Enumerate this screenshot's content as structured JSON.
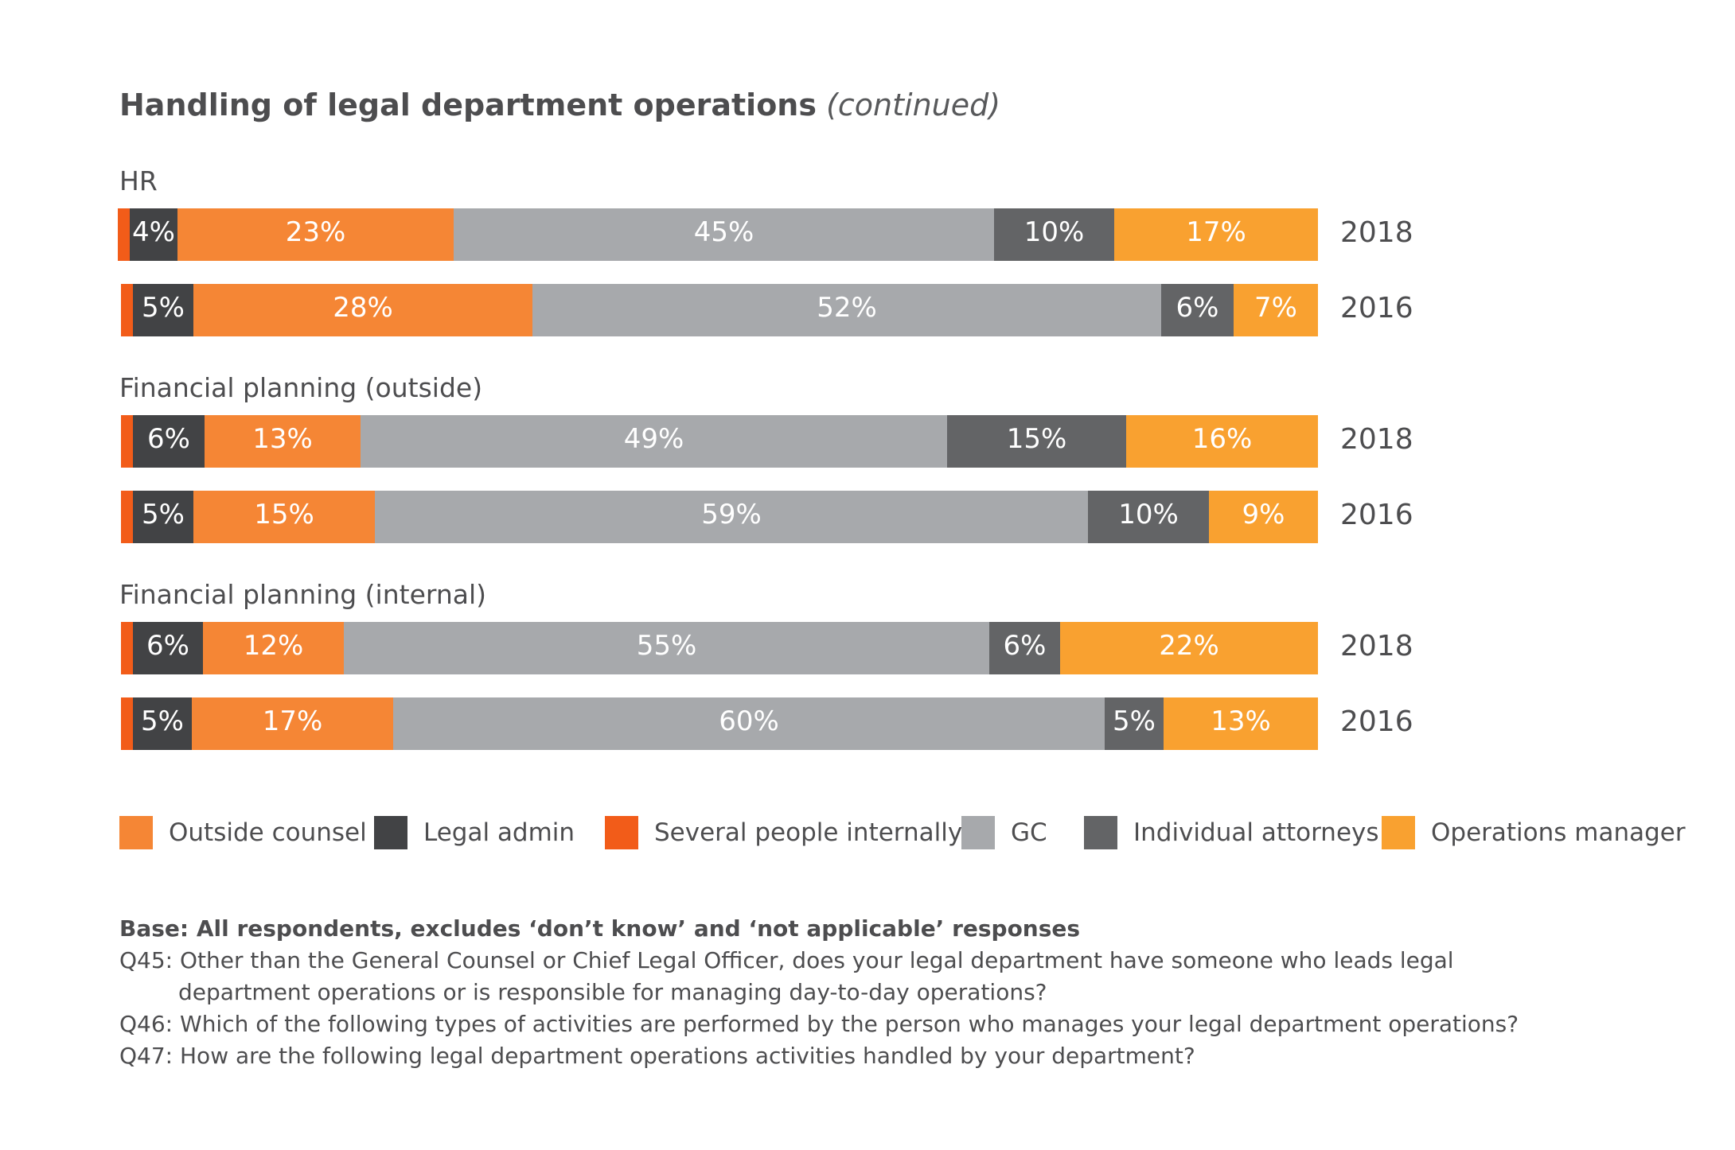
{
  "chart_data": {
    "type": "stacked-bar-horizontal",
    "title": "Handling of legal department operations",
    "subtitle": "(continued)",
    "series_order": [
      "Several people internally",
      "Legal admin",
      "Outside counsel",
      "GC",
      "Individual attorneys",
      "Operations manager"
    ],
    "colors": {
      "Several people internally": "#f25c19",
      "Legal admin": "#424345",
      "Outside counsel": "#f58635",
      "GC": "#a7a9ac",
      "Individual attorneys": "#636466",
      "Operations manager": "#f9a130"
    },
    "groups": [
      {
        "name": "HR",
        "rows": [
          {
            "year": "2018",
            "values": [
              1,
              4,
              23,
              45,
              10,
              17
            ],
            "labels": [
              "",
              "4%",
              "23%",
              "45%",
              "10%",
              "17%"
            ]
          },
          {
            "year": "2016",
            "values": [
              1,
              5,
              28,
              52,
              6,
              7
            ],
            "labels": [
              "",
              "5%",
              "28%",
              "52%",
              "6%",
              "7%"
            ]
          }
        ]
      },
      {
        "name": "Financial planning (outside)",
        "rows": [
          {
            "year": "2018",
            "values": [
              1,
              6,
              13,
              49,
              15,
              16
            ],
            "labels": [
              "",
              "6%",
              "13%",
              "49%",
              "15%",
              "16%"
            ]
          },
          {
            "year": "2016",
            "values": [
              1,
              5,
              15,
              59,
              10,
              9
            ],
            "labels": [
              "",
              "5%",
              "15%",
              "59%",
              "10%",
              "9%"
            ]
          }
        ]
      },
      {
        "name": "Financial planning (internal)",
        "rows": [
          {
            "year": "2018",
            "values": [
              1,
              6,
              12,
              55,
              6,
              22
            ],
            "labels": [
              "",
              "6%",
              "12%",
              "55%",
              "6%",
              "22%"
            ]
          },
          {
            "year": "2016",
            "values": [
              1,
              5,
              17,
              60,
              5,
              13
            ],
            "labels": [
              "",
              "5%",
              "17%",
              "60%",
              "5%",
              "13%"
            ]
          }
        ]
      }
    ],
    "legend": [
      {
        "label": "Outside counsel",
        "color": "#f58635"
      },
      {
        "label": "Legal admin",
        "color": "#424345"
      },
      {
        "label": "Several people internally",
        "color": "#f25c19"
      },
      {
        "label": "GC",
        "color": "#a7a9ac"
      },
      {
        "label": "Individual attorneys",
        "color": "#636466"
      },
      {
        "label": "Operations manager",
        "color": "#f9a130"
      }
    ]
  },
  "footnotes": {
    "base": "Base: All respondents, excludes ‘don’t know’ and ‘not applicable’ responses",
    "q45_line1": "Q45: Other than the General Counsel or Chief Legal Officer, does your legal department have someone who leads legal",
    "q45_line2": "department operations or is responsible for managing day-to-day operations?",
    "q46": "Q46: Which of the following types of activities are performed by the person who manages your legal department operations?",
    "q47": "Q47:  How are the following legal department operations activities handled by your department?"
  }
}
